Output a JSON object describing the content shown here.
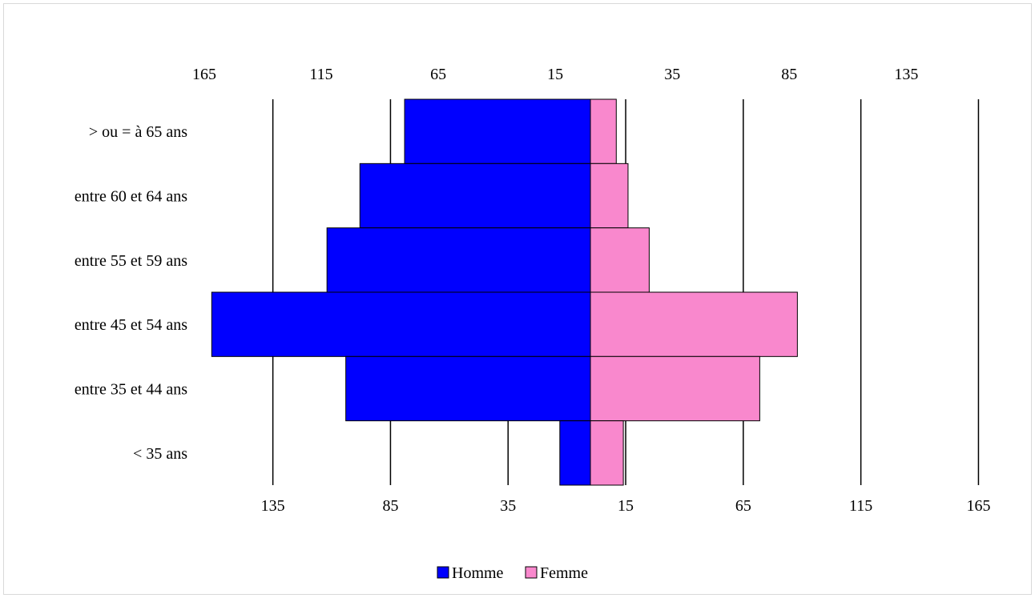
{
  "chart_data": {
    "type": "bar",
    "orientation": "horizontal-pyramid",
    "categories": [
      "> ou = à 65 ans",
      "entre 60 et 64 ans",
      "entre 55 et 59 ans",
      "entre 45 et 54 ans",
      "entre 35 et 44 ans",
      "< 35 ans"
    ],
    "series": [
      {
        "name": "Homme",
        "values": [
          79,
          98,
          112,
          161,
          104,
          13
        ],
        "color": "#0000ff"
      },
      {
        "name": "Femme",
        "values": [
          11,
          16,
          25,
          88,
          72,
          14
        ],
        "color": "#f988cd"
      }
    ],
    "xlim": [
      -165,
      165
    ],
    "top_tick_labels": [
      "165",
      "115",
      "65",
      "15",
      "35",
      "85",
      "135"
    ],
    "bottom_tick_labels": [
      "135",
      "85",
      "35",
      "15",
      "65",
      "115",
      "165"
    ],
    "grid": true,
    "legend_position": "bottom"
  }
}
